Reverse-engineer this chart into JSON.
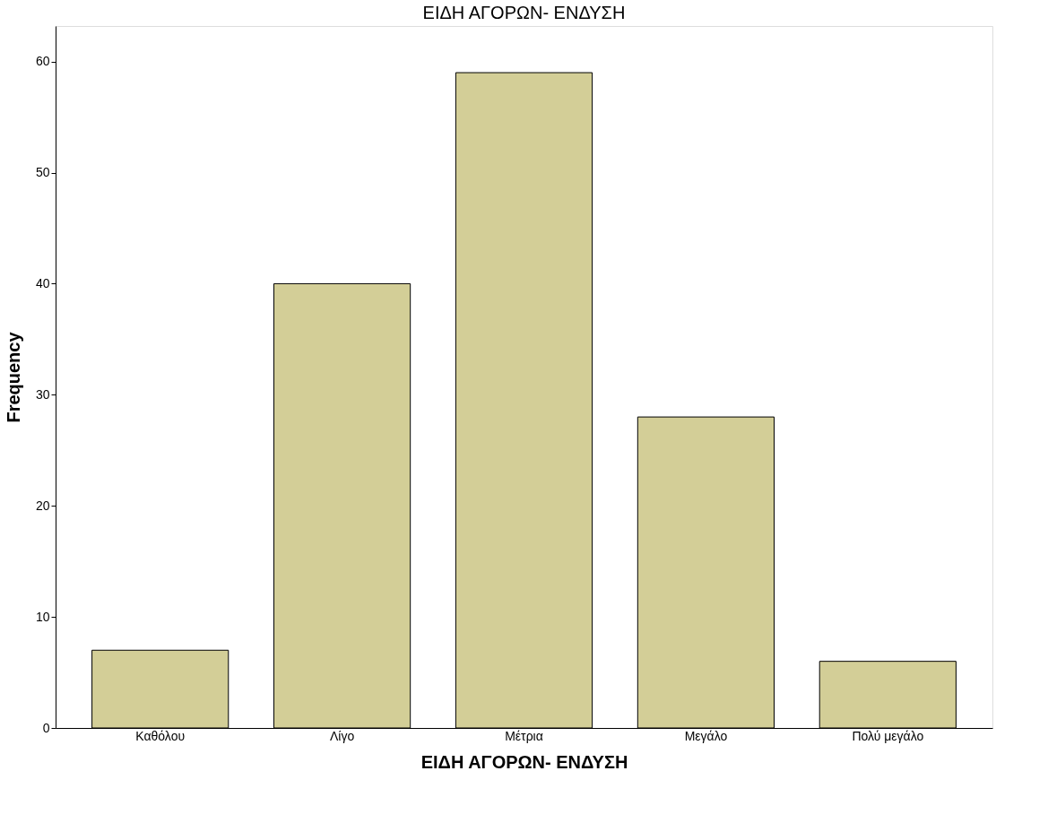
{
  "chart_data": {
    "type": "bar",
    "title": "ΕΙΔΗ ΑΓΟΡΩΝ- ΕΝΔΥΣΗ",
    "xlabel": "ΕΙΔΗ ΑΓΟΡΩΝ- ΕΝΔΥΣΗ",
    "ylabel": "Frequency",
    "categories": [
      "Καθόλου",
      "Λίγο",
      "Μέτρια",
      "Μεγάλο",
      "Πολύ μεγάλο"
    ],
    "values": [
      7,
      40,
      59,
      28,
      6
    ],
    "color": "#d3ce97",
    "ylim": [
      0,
      63.2
    ],
    "yticks": [
      0,
      10,
      20,
      30,
      40,
      50,
      60
    ],
    "grid": false
  }
}
